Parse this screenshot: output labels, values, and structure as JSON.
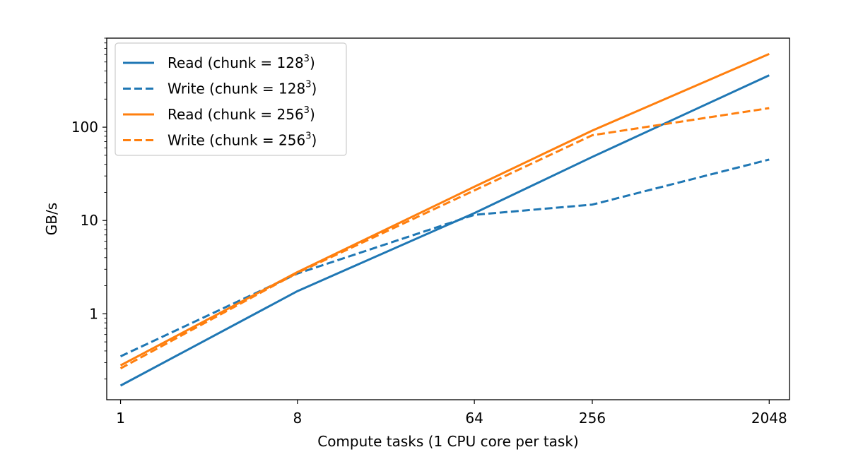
{
  "chart_data": {
    "type": "line",
    "title": "",
    "xlabel": "Compute tasks (1 CPU core per task)",
    "ylabel": "GB/s",
    "x_scale": "log2",
    "y_scale": "log10",
    "x": [
      1,
      8,
      64,
      256,
      2048
    ],
    "x_tick_labels": [
      "1",
      "8",
      "64",
      "256",
      "2048"
    ],
    "y_ticks": [
      1,
      10,
      100
    ],
    "y_tick_labels": [
      "1",
      "10",
      "100"
    ],
    "xlim": [
      0.85,
      2600
    ],
    "ylim": [
      0.12,
      900
    ],
    "grid": false,
    "legend_position": "top-left",
    "series": [
      {
        "name_main": "Read (chunk = 128",
        "name_sup": "3",
        "name_end": ")",
        "color": "#1f77b4",
        "dash": "solid",
        "values": [
          0.17,
          1.75,
          12,
          48,
          360
        ]
      },
      {
        "name_main": "Write (chunk = 128",
        "name_sup": "3",
        "name_end": ")",
        "color": "#1f77b4",
        "dash": "dashed",
        "values": [
          0.35,
          2.7,
          11.5,
          14.8,
          45
        ]
      },
      {
        "name_main": "Read (chunk = 256",
        "name_sup": "3",
        "name_end": ")",
        "color": "#ff7f0e",
        "dash": "solid",
        "values": [
          0.28,
          2.8,
          23,
          92,
          610
        ]
      },
      {
        "name_main": "Write (chunk = 256",
        "name_sup": "3",
        "name_end": ")",
        "color": "#ff7f0e",
        "dash": "dashed",
        "values": [
          0.26,
          2.75,
          21,
          82,
          160
        ]
      }
    ]
  }
}
